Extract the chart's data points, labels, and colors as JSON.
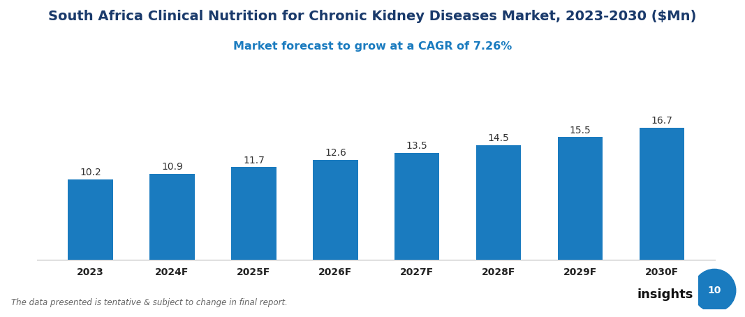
{
  "title": "South Africa Clinical Nutrition for Chronic Kidney Diseases Market, 2023-2030 ($Mn)",
  "subtitle": "Market forecast to grow at a CAGR of 7.26%",
  "categories": [
    "2023",
    "2024F",
    "2025F",
    "2026F",
    "2027F",
    "2028F",
    "2029F",
    "2030F"
  ],
  "values": [
    10.2,
    10.9,
    11.7,
    12.6,
    13.5,
    14.5,
    15.5,
    16.7
  ],
  "bar_color": "#1a7bbf",
  "title_color": "#1a3a6b",
  "subtitle_color": "#1a7bbf",
  "label_color": "#333333",
  "footnote": "The data presented is tentative & subject to change in final report.",
  "footnote_color": "#666666",
  "background_color": "#ffffff",
  "ylim": [
    0,
    20
  ],
  "title_fontsize": 14,
  "subtitle_fontsize": 11.5,
  "bar_label_fontsize": 10,
  "tick_fontsize": 10,
  "footnote_fontsize": 8.5
}
